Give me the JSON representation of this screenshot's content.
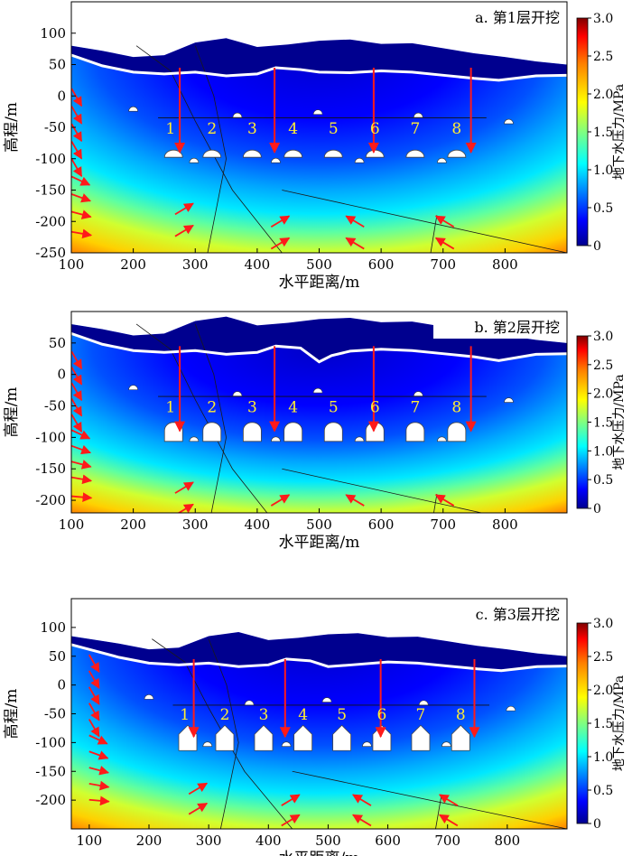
{
  "chart_data": [
    {
      "type": "heatmap",
      "title": "a. 第1层开挖",
      "xlabel": "水平距离/m",
      "ylabel": "高程/m",
      "colorbar_label": "地下水压力/MPa",
      "xlim": [
        100,
        900
      ],
      "ylim": [
        -250,
        150
      ],
      "xticks": [
        100,
        200,
        300,
        400,
        500,
        600,
        700,
        800
      ],
      "yticks": [
        100,
        50,
        0,
        -50,
        -100,
        -150,
        -200,
        -250
      ],
      "colorbar_ticks": [
        "3.0",
        "2.5",
        "2.0",
        "1.5",
        "1.0",
        "0.5",
        "0"
      ],
      "colorbar_range": [
        0,
        3.0
      ],
      "tunnel_labels": [
        "1",
        "2",
        "3",
        "4",
        "5",
        "6",
        "7",
        "8"
      ],
      "tunnel_label_positions_m": [
        [
          260,
          -60
        ],
        [
          327,
          -60
        ],
        [
          392,
          -60
        ],
        [
          458,
          -60
        ],
        [
          523,
          -60
        ],
        [
          590,
          -60
        ],
        [
          655,
          -60
        ],
        [
          722,
          -60
        ]
      ],
      "tunnel_shape": "dome",
      "surface_profile_m": [
        [
          100,
          80
        ],
        [
          150,
          72
        ],
        [
          200,
          62
        ],
        [
          250,
          65
        ],
        [
          300,
          85
        ],
        [
          350,
          92
        ],
        [
          400,
          78
        ],
        [
          450,
          82
        ],
        [
          500,
          88
        ],
        [
          550,
          90
        ],
        [
          600,
          83
        ],
        [
          650,
          84
        ],
        [
          700,
          76
        ],
        [
          750,
          68
        ],
        [
          800,
          62
        ],
        [
          850,
          55
        ],
        [
          900,
          50
        ]
      ],
      "water_table_m": [
        [
          100,
          65
        ],
        [
          150,
          48
        ],
        [
          200,
          38
        ],
        [
          250,
          35
        ],
        [
          300,
          38
        ],
        [
          350,
          32
        ],
        [
          400,
          35
        ],
        [
          430,
          45
        ],
        [
          470,
          42
        ],
        [
          500,
          38
        ],
        [
          550,
          37
        ],
        [
          600,
          40
        ],
        [
          650,
          38
        ],
        [
          700,
          33
        ],
        [
          750,
          28
        ],
        [
          790,
          25
        ],
        [
          850,
          32
        ],
        [
          900,
          33
        ]
      ],
      "flow_arrows_left_m": [
        [
          118,
          0
        ],
        [
          118,
          -28
        ],
        [
          118,
          -56
        ],
        [
          118,
          -84
        ],
        [
          118,
          -112
        ],
        [
          118,
          -140
        ],
        [
          118,
          -168
        ],
        [
          118,
          -196
        ],
        [
          118,
          -228
        ]
      ]
    },
    {
      "type": "heatmap",
      "title": "b. 第2层开挖",
      "xlabel": "水平距离/m",
      "ylabel": "高程/m",
      "colorbar_label": "地下水压力/MPa",
      "xlim": [
        100,
        900
      ],
      "ylim": [
        -220,
        100
      ],
      "xticks": [
        100,
        200,
        300,
        400,
        500,
        600,
        700,
        800
      ],
      "yticks": [
        50,
        0,
        -50,
        -100,
        -150,
        -200
      ],
      "colorbar_ticks": [
        "3.0",
        "2.5",
        "2.0",
        "1.5",
        "1.0",
        "0.5",
        "0"
      ],
      "colorbar_range": [
        0,
        3.0
      ],
      "tunnel_labels": [
        "1",
        "2",
        "3",
        "4",
        "5",
        "6",
        "7",
        "8"
      ],
      "tunnel_label_positions_m": [
        [
          260,
          -60
        ],
        [
          327,
          -60
        ],
        [
          392,
          -60
        ],
        [
          458,
          -60
        ],
        [
          523,
          -60
        ],
        [
          590,
          -60
        ],
        [
          655,
          -60
        ],
        [
          722,
          -60
        ]
      ],
      "tunnel_shape": "horseshoe",
      "surface_profile_m": [
        [
          100,
          80
        ],
        [
          150,
          72
        ],
        [
          200,
          62
        ],
        [
          250,
          65
        ],
        [
          300,
          85
        ],
        [
          350,
          92
        ],
        [
          400,
          78
        ],
        [
          450,
          82
        ],
        [
          500,
          88
        ],
        [
          550,
          90
        ],
        [
          600,
          83
        ],
        [
          650,
          84
        ],
        [
          700,
          76
        ],
        [
          750,
          68
        ],
        [
          800,
          62
        ],
        [
          850,
          55
        ],
        [
          900,
          50
        ]
      ],
      "water_table_m": [
        [
          100,
          65
        ],
        [
          150,
          48
        ],
        [
          200,
          38
        ],
        [
          250,
          35
        ],
        [
          300,
          38
        ],
        [
          350,
          32
        ],
        [
          400,
          35
        ],
        [
          430,
          45
        ],
        [
          470,
          42
        ],
        [
          500,
          20
        ],
        [
          520,
          30
        ],
        [
          550,
          37
        ],
        [
          600,
          40
        ],
        [
          650,
          38
        ],
        [
          700,
          33
        ],
        [
          750,
          28
        ],
        [
          790,
          22
        ],
        [
          850,
          32
        ],
        [
          900,
          33
        ]
      ],
      "flow_arrows_left_m": [
        [
          118,
          25
        ],
        [
          118,
          0
        ],
        [
          118,
          -25
        ],
        [
          118,
          -50
        ],
        [
          118,
          -75
        ],
        [
          118,
          -100
        ],
        [
          118,
          -125
        ],
        [
          118,
          -150
        ],
        [
          118,
          -175
        ],
        [
          118,
          -205
        ]
      ]
    },
    {
      "type": "heatmap",
      "title": "c. 第3层开挖",
      "xlabel": "水平距离/m",
      "ylabel": "高程/m",
      "colorbar_label": "地下水压力/MPa",
      "xlim": [
        70,
        900
      ],
      "ylim": [
        -250,
        150
      ],
      "xticks": [
        100,
        200,
        300,
        400,
        500,
        600,
        700,
        800
      ],
      "yticks": [
        100,
        50,
        0,
        -50,
        -100,
        -150,
        -200
      ],
      "colorbar_ticks": [
        "3.0",
        "2.5",
        "2.0",
        "1.5",
        "1.0",
        "0.5",
        "0"
      ],
      "colorbar_range": [
        0,
        3.0
      ],
      "tunnel_labels": [
        "1",
        "2",
        "3",
        "4",
        "5",
        "6",
        "7",
        "8"
      ],
      "tunnel_label_positions_m": [
        [
          260,
          -60
        ],
        [
          327,
          -60
        ],
        [
          392,
          -60
        ],
        [
          458,
          -60
        ],
        [
          523,
          -60
        ],
        [
          590,
          -60
        ],
        [
          655,
          -60
        ],
        [
          722,
          -60
        ]
      ],
      "tunnel_shape": "tall",
      "surface_profile_m": [
        [
          70,
          85
        ],
        [
          150,
          72
        ],
        [
          200,
          62
        ],
        [
          250,
          65
        ],
        [
          300,
          85
        ],
        [
          350,
          92
        ],
        [
          400,
          78
        ],
        [
          450,
          82
        ],
        [
          500,
          88
        ],
        [
          550,
          90
        ],
        [
          600,
          83
        ],
        [
          650,
          84
        ],
        [
          700,
          76
        ],
        [
          750,
          68
        ],
        [
          800,
          62
        ],
        [
          850,
          55
        ],
        [
          900,
          50
        ]
      ],
      "water_table_m": [
        [
          70,
          70
        ],
        [
          150,
          48
        ],
        [
          200,
          38
        ],
        [
          250,
          35
        ],
        [
          300,
          38
        ],
        [
          350,
          32
        ],
        [
          400,
          35
        ],
        [
          430,
          45
        ],
        [
          470,
          42
        ],
        [
          500,
          32
        ],
        [
          540,
          35
        ],
        [
          600,
          40
        ],
        [
          650,
          38
        ],
        [
          700,
          33
        ],
        [
          750,
          28
        ],
        [
          790,
          25
        ],
        [
          850,
          32
        ],
        [
          900,
          33
        ]
      ],
      "flow_arrows_left_m": [
        [
          118,
          40
        ],
        [
          118,
          12
        ],
        [
          118,
          -16
        ],
        [
          118,
          -44
        ],
        [
          118,
          -72
        ],
        [
          118,
          -100
        ],
        [
          118,
          -128
        ],
        [
          118,
          -156
        ],
        [
          118,
          -184
        ],
        [
          118,
          -212
        ]
      ]
    }
  ],
  "colors": {
    "jet": [
      "#00008f",
      "#0000ff",
      "#0080ff",
      "#00ffff",
      "#80ff80",
      "#ffff00",
      "#ff8000",
      "#ff0000",
      "#800000"
    ],
    "arrow": "#ff1a1a",
    "tunnel_label": "#ffee33",
    "water_table": "#ffffff",
    "above_surface": "#ffffff"
  }
}
